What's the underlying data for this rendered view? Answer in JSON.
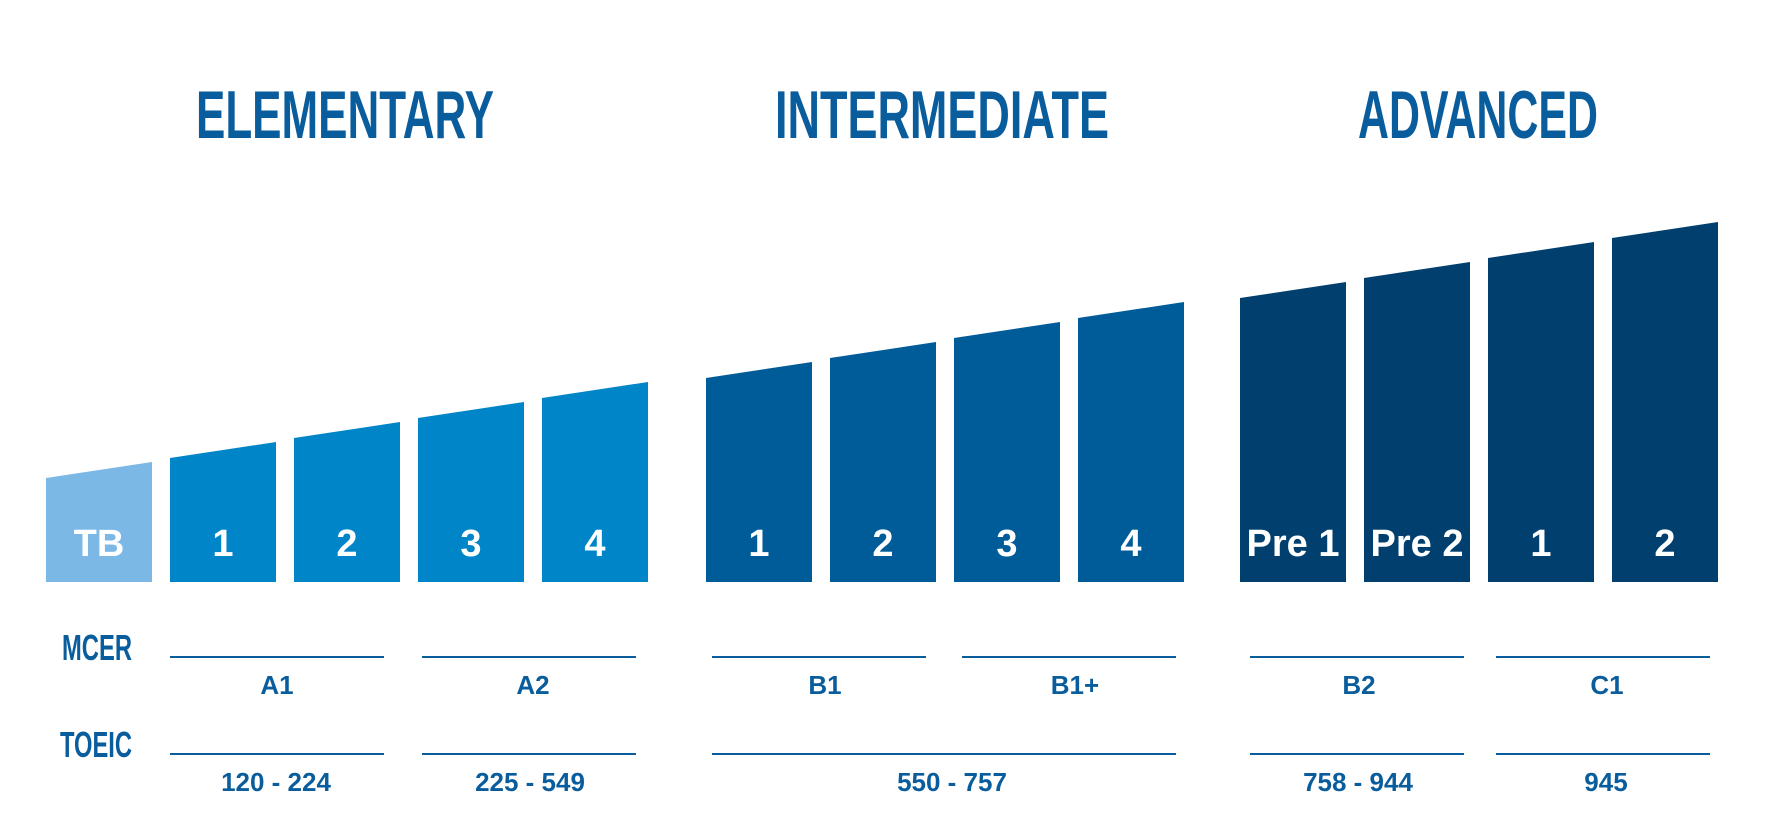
{
  "groups": [
    {
      "title": "ELEMENTARY",
      "color": "#0086c8",
      "bars": [
        {
          "label": "TB",
          "color": "#7cb8e6",
          "level": 1
        },
        {
          "label": "1",
          "level": 2
        },
        {
          "label": "2",
          "level": 3
        },
        {
          "label": "3",
          "level": 4
        },
        {
          "label": "4",
          "level": 5
        }
      ]
    },
    {
      "title": "INTERMEDIATE",
      "color": "#005c99",
      "bars": [
        {
          "label": "1",
          "level": 6
        },
        {
          "label": "2",
          "level": 7
        },
        {
          "label": "3",
          "level": 8
        },
        {
          "label": "4",
          "level": 9
        }
      ]
    },
    {
      "title": "ADVANCED",
      "color": "#003f6e",
      "bars": [
        {
          "label": "Pre 1",
          "level": 10
        },
        {
          "label": "Pre 2",
          "level": 11
        },
        {
          "label": "1",
          "level": 12
        },
        {
          "label": "2",
          "level": 13
        }
      ]
    }
  ],
  "rows": {
    "mcer": {
      "label": "MCER",
      "cells": [
        "A1",
        "A2",
        "B1",
        "B1+",
        "B2",
        "C1"
      ]
    },
    "toeic": {
      "label": "TOEIC",
      "cells": [
        "120 - 224",
        "225 - 549",
        "550 - 757",
        "758 - 944",
        "945"
      ]
    }
  },
  "colors": {
    "text": "#0a5d9c",
    "bar_text": "#ffffff"
  }
}
